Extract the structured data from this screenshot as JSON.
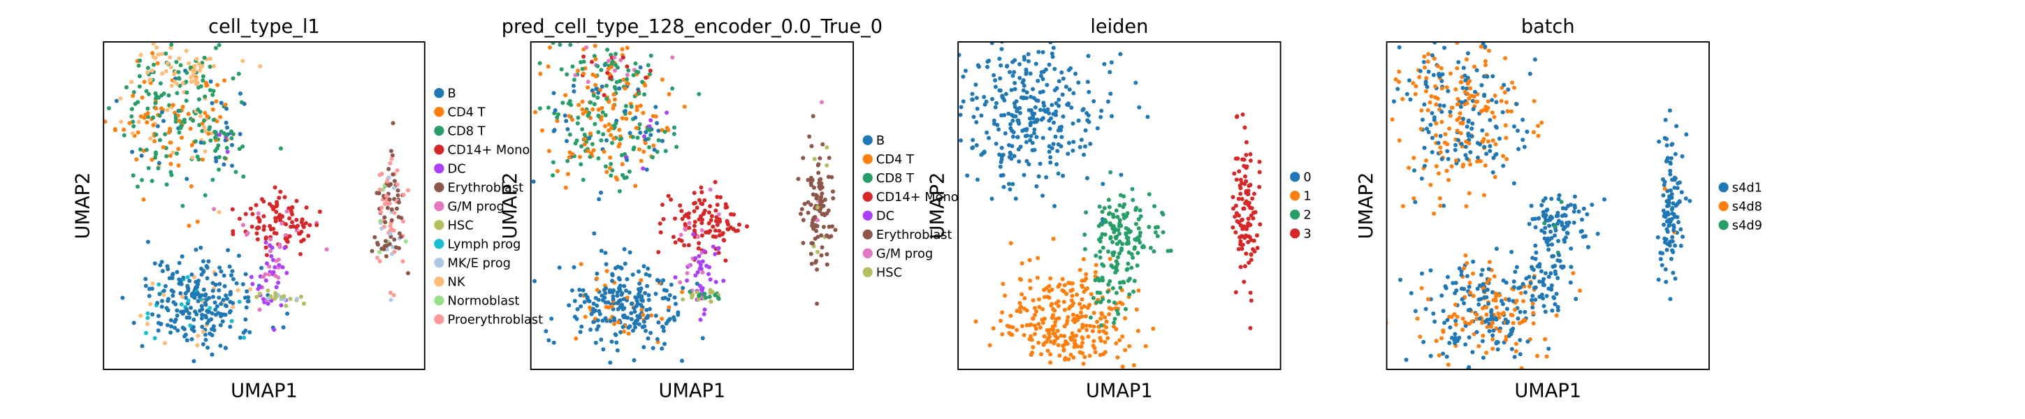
{
  "chart_data": [
    {
      "type": "scatter",
      "title": "cell_type_l1",
      "xlabel": "UMAP1",
      "ylabel": "UMAP2",
      "legend_position": "right",
      "grid": false,
      "legend": [
        {
          "name": "B",
          "color": "#1f77b4"
        },
        {
          "name": "CD4 T",
          "color": "#ff7f0e"
        },
        {
          "name": "CD8 T",
          "color": "#279e68"
        },
        {
          "name": "CD14+ Mono",
          "color": "#d62728"
        },
        {
          "name": "DC",
          "color": "#aa40fc"
        },
        {
          "name": "Erythroblast",
          "color": "#8c564b"
        },
        {
          "name": "G/M prog",
          "color": "#e377c2"
        },
        {
          "name": "HSC",
          "color": "#b5bd61"
        },
        {
          "name": "Lymph prog",
          "color": "#17becf"
        },
        {
          "name": "MK/E prog",
          "color": "#aec7e8"
        },
        {
          "name": "NK",
          "color": "#ffbb78"
        },
        {
          "name": "Normoblast",
          "color": "#98df8a"
        },
        {
          "name": "Proerythroblast",
          "color": "#ff9896"
        }
      ]
    },
    {
      "type": "scatter",
      "title": "pred_cell_type_128_encoder_0.0_True_0",
      "xlabel": "UMAP1",
      "ylabel": "UMAP2",
      "legend_position": "right",
      "grid": false,
      "legend": [
        {
          "name": "B",
          "color": "#1f77b4"
        },
        {
          "name": "CD4 T",
          "color": "#ff7f0e"
        },
        {
          "name": "CD8 T",
          "color": "#279e68"
        },
        {
          "name": "CD14+ Mono",
          "color": "#d62728"
        },
        {
          "name": "DC",
          "color": "#aa40fc"
        },
        {
          "name": "Erythroblast",
          "color": "#8c564b"
        },
        {
          "name": "G/M prog",
          "color": "#e377c2"
        },
        {
          "name": "HSC",
          "color": "#b5bd61"
        }
      ]
    },
    {
      "type": "scatter",
      "title": "leiden",
      "xlabel": "UMAP1",
      "ylabel": "UMAP2",
      "legend_position": "right",
      "grid": false,
      "legend": [
        {
          "name": "0",
          "color": "#1f77b4"
        },
        {
          "name": "1",
          "color": "#ff7f0e"
        },
        {
          "name": "2",
          "color": "#279e68"
        },
        {
          "name": "3",
          "color": "#d62728"
        }
      ]
    },
    {
      "type": "scatter",
      "title": "batch",
      "xlabel": "UMAP1",
      "ylabel": "UMAP2",
      "legend_position": "right",
      "grid": false,
      "legend": [
        {
          "name": "s4d1",
          "color": "#1f77b4"
        },
        {
          "name": "s4d8",
          "color": "#ff7f0e"
        },
        {
          "name": "s4d9",
          "color": "#279e68"
        }
      ]
    }
  ]
}
